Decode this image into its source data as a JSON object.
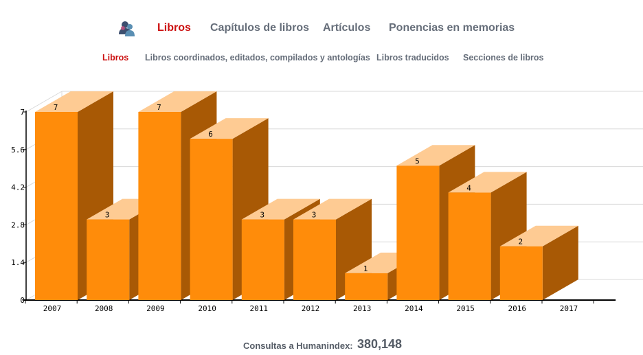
{
  "nav": {
    "main": [
      {
        "label": "Libros",
        "active": true
      },
      {
        "label": "Capítulos de libros",
        "active": false
      },
      {
        "label": "Artículos",
        "active": false
      },
      {
        "label": "Ponencias en memorias",
        "active": false
      }
    ],
    "sub": [
      {
        "label": "Libros",
        "active": true
      },
      {
        "label": "Libros coordinados, editados, compilados y antologías",
        "active": false
      },
      {
        "label": "Libros traducidos",
        "active": false
      },
      {
        "label": "Secciones de libros",
        "active": false
      }
    ],
    "icon": "users-icon"
  },
  "colors": {
    "bar_front": "#ff8c0a",
    "bar_top": "#fecb93",
    "bar_side": "#a85905",
    "active": "#cc1111",
    "nav_text": "#666e7a"
  },
  "chart_data": {
    "type": "bar",
    "style": "3d",
    "categories": [
      "2007",
      "2008",
      "2009",
      "2010",
      "2011",
      "2012",
      "2013",
      "2014",
      "2015",
      "2016",
      "2017"
    ],
    "values": [
      7,
      3,
      7,
      6,
      3,
      3,
      1,
      5,
      4,
      2,
      null
    ],
    "data_labels": [
      "7",
      "3",
      "7",
      "6",
      "3",
      "3",
      "1",
      "5",
      "4",
      "2",
      ""
    ],
    "y_ticks": [
      "0",
      "1.4",
      "2.8",
      "4.2",
      "5.6",
      "7"
    ],
    "ylim": [
      0,
      7
    ],
    "grid": true,
    "legend": "none"
  },
  "footer": {
    "label": "Consultas a Humanindex:",
    "value": "380,148"
  }
}
